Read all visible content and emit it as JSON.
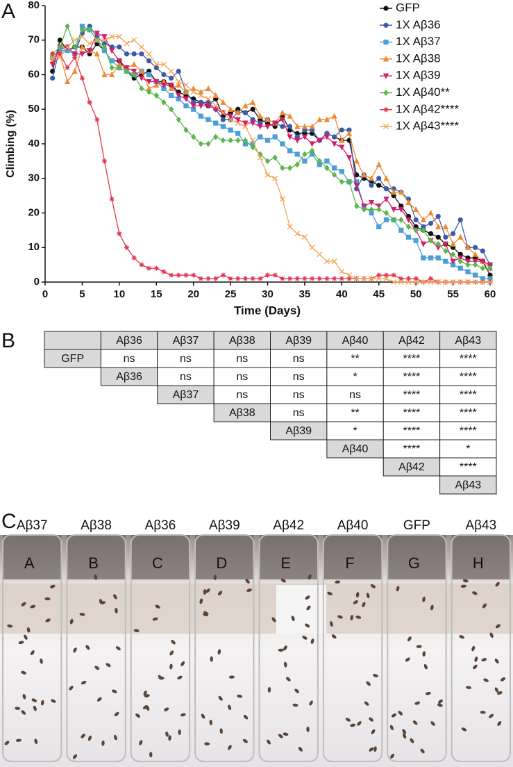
{
  "panel_labels": [
    "A",
    "B",
    "C"
  ],
  "chart_data": {
    "type": "line",
    "xlabel": "Time (Days)",
    "ylabel": "Climbing (%)",
    "x": [
      1,
      2,
      3,
      4,
      5,
      6,
      7,
      8,
      9,
      10,
      11,
      12,
      13,
      14,
      15,
      16,
      17,
      18,
      19,
      20,
      21,
      22,
      23,
      24,
      25,
      26,
      27,
      28,
      29,
      30,
      31,
      32,
      33,
      34,
      35,
      36,
      37,
      38,
      39,
      40,
      41,
      42,
      43,
      44,
      45,
      46,
      47,
      48,
      49,
      50,
      51,
      52,
      53,
      54,
      55,
      56,
      57,
      58,
      59,
      60
    ],
    "xlim": [
      0,
      60
    ],
    "xticks": [
      0,
      5,
      10,
      15,
      20,
      25,
      30,
      35,
      40,
      45,
      50,
      55,
      60
    ],
    "ylim": [
      0,
      80
    ],
    "yticks": [
      0,
      10,
      20,
      30,
      40,
      50,
      60,
      70,
      80
    ],
    "legend": "upper right",
    "series": [
      {
        "name": "GFP",
        "color": "#111111",
        "marker": "circle",
        "values": [
          61,
          70,
          67,
          68,
          68,
          66,
          69,
          67,
          64,
          64,
          61,
          59,
          60,
          61,
          58,
          58,
          57,
          55,
          54,
          53,
          52,
          51,
          53,
          48,
          49,
          50,
          49,
          50,
          47,
          46,
          45,
          48,
          44,
          43,
          43,
          43,
          41,
          43,
          42,
          41,
          41,
          31,
          30,
          29,
          28,
          27,
          25,
          22,
          19,
          16,
          15,
          14,
          13,
          11,
          10,
          8,
          7,
          7,
          6,
          2
        ]
      },
      {
        "name": "1X Aβ36",
        "color": "#3b5ba9",
        "marker": "circle",
        "values": [
          59,
          68,
          67,
          66,
          72,
          74,
          71,
          69,
          68,
          68,
          66,
          66,
          66,
          64,
          62,
          60,
          59,
          61,
          55,
          52,
          52,
          52,
          50,
          47,
          47,
          49,
          49,
          47,
          46,
          47,
          46,
          45,
          45,
          42,
          44,
          44,
          41,
          43,
          42,
          44,
          44,
          27,
          31,
          28,
          30,
          27,
          27,
          26,
          24,
          18,
          16,
          17,
          19,
          13,
          14,
          18,
          10,
          10,
          9,
          5
        ]
      },
      {
        "name": "1X Aβ37",
        "color": "#4a9fd6",
        "marker": "square",
        "values": [
          65,
          67,
          67,
          66,
          74,
          73,
          70,
          67,
          64,
          62,
          61,
          60,
          61,
          60,
          58,
          56,
          54,
          53,
          51,
          50,
          48,
          47,
          46,
          45,
          44,
          43,
          40,
          40,
          42,
          41,
          42,
          40,
          38,
          37,
          35,
          37,
          34,
          35,
          33,
          32,
          29,
          29,
          22,
          20,
          16,
          18,
          18,
          15,
          13,
          12,
          7,
          7,
          7,
          6,
          5,
          4,
          3,
          2,
          1,
          1
        ]
      },
      {
        "name": "1X Aβ38",
        "color": "#ee8a32",
        "marker": "triangle",
        "values": [
          64,
          66,
          58,
          61,
          68,
          67,
          66,
          60,
          60,
          63,
          62,
          63,
          61,
          56,
          57,
          58,
          56,
          57,
          55,
          56,
          55,
          56,
          54,
          52,
          50,
          49,
          51,
          52,
          48,
          47,
          46,
          49,
          48,
          45,
          45,
          45,
          47,
          47,
          48,
          41,
          43,
          35,
          31,
          30,
          34,
          30,
          26,
          26,
          23,
          21,
          18,
          20,
          16,
          16,
          11,
          13,
          10,
          8,
          6,
          4
        ]
      },
      {
        "name": "1X Aβ39",
        "color": "#d41c6c",
        "marker": "triangle-down",
        "values": [
          63,
          68,
          68,
          66,
          66,
          67,
          72,
          71,
          67,
          64,
          62,
          61,
          59,
          58,
          58,
          57,
          57,
          54,
          53,
          51,
          51,
          51,
          50,
          49,
          48,
          47,
          46,
          46,
          45,
          45,
          46,
          47,
          42,
          41,
          42,
          40,
          41,
          42,
          40,
          39,
          36,
          28,
          22,
          23,
          22,
          24,
          21,
          21,
          18,
          15,
          11,
          12,
          10,
          11,
          6,
          7,
          6,
          6,
          6,
          5
        ]
      },
      {
        "name": "1X Aβ40**",
        "color": "#5bb64a",
        "marker": "diamond",
        "values": [
          66,
          68,
          74,
          68,
          73,
          73,
          70,
          68,
          62,
          62,
          61,
          60,
          56,
          55,
          54,
          52,
          50,
          47,
          44,
          42,
          40,
          40,
          42,
          41,
          41,
          41,
          41,
          39,
          37,
          35,
          36,
          33,
          33,
          34,
          37,
          38,
          35,
          33,
          31,
          29,
          29,
          22,
          21,
          21,
          21,
          20,
          18,
          18,
          16,
          15,
          15,
          12,
          11,
          9,
          8,
          6,
          5,
          5,
          4,
          4
        ]
      },
      {
        "name": "1X Aβ42****",
        "color": "#e2334b",
        "marker": "asterisk",
        "values": [
          66,
          66,
          62,
          65,
          59,
          52,
          47,
          35,
          24,
          14,
          10,
          7,
          5,
          4,
          4,
          3,
          2,
          2,
          2,
          2,
          1,
          1,
          1,
          2,
          1,
          1,
          1,
          1,
          1,
          2,
          2,
          1,
          1,
          1,
          1,
          1,
          1,
          1,
          1,
          1,
          1,
          1,
          1,
          1,
          2,
          2,
          2,
          1,
          1,
          1,
          0,
          1,
          0,
          0,
          0,
          0,
          0,
          0,
          0,
          0
        ]
      },
      {
        "name": "1X Aβ43****",
        "color": "#f3a35a",
        "marker": "x",
        "values": [
          65,
          65,
          68,
          70,
          71,
          69,
          70,
          70,
          71,
          71,
          69,
          70,
          68,
          66,
          63,
          63,
          61,
          58,
          57,
          55,
          54,
          53,
          51,
          49,
          47,
          46,
          45,
          41,
          36,
          31,
          30,
          24,
          16,
          14,
          13,
          10,
          8,
          6,
          6,
          3,
          2,
          1,
          1,
          1,
          1,
          1,
          0,
          0,
          0,
          0,
          0,
          0,
          0,
          0,
          0,
          0,
          0,
          0,
          0,
          0
        ]
      }
    ]
  },
  "table": {
    "columns": [
      "Aβ36",
      "Aβ37",
      "Aβ38",
      "Aβ39",
      "Aβ40",
      "Aβ42",
      "Aβ43"
    ],
    "rows": [
      {
        "label": "GFP",
        "cells": [
          "ns",
          "ns",
          "ns",
          "ns",
          "**",
          "****",
          "****"
        ]
      },
      {
        "label": "Aβ36",
        "cells": [
          "ns",
          "ns",
          "ns",
          "*",
          "****",
          "****"
        ]
      },
      {
        "label": "Aβ37",
        "cells": [
          "ns",
          "ns",
          "ns",
          "****",
          "****"
        ]
      },
      {
        "label": "Aβ38",
        "cells": [
          "ns",
          "**",
          "****",
          "****"
        ]
      },
      {
        "label": "Aβ39",
        "cells": [
          "*",
          "****",
          "****"
        ]
      },
      {
        "label": "Aβ40",
        "cells": [
          "****",
          "*"
        ]
      },
      {
        "label": "Aβ42",
        "cells": [
          "****"
        ]
      },
      {
        "label": "Aβ43",
        "cells": []
      }
    ]
  },
  "photo": {
    "labels": [
      "Aβ37",
      "Aβ38",
      "Aβ36",
      "Aβ39",
      "Aβ42",
      "Aβ40",
      "GFP",
      "Aβ43"
    ],
    "tube_letters": [
      "A",
      "B",
      "C",
      "D",
      "E",
      "F",
      "G",
      "H"
    ]
  }
}
